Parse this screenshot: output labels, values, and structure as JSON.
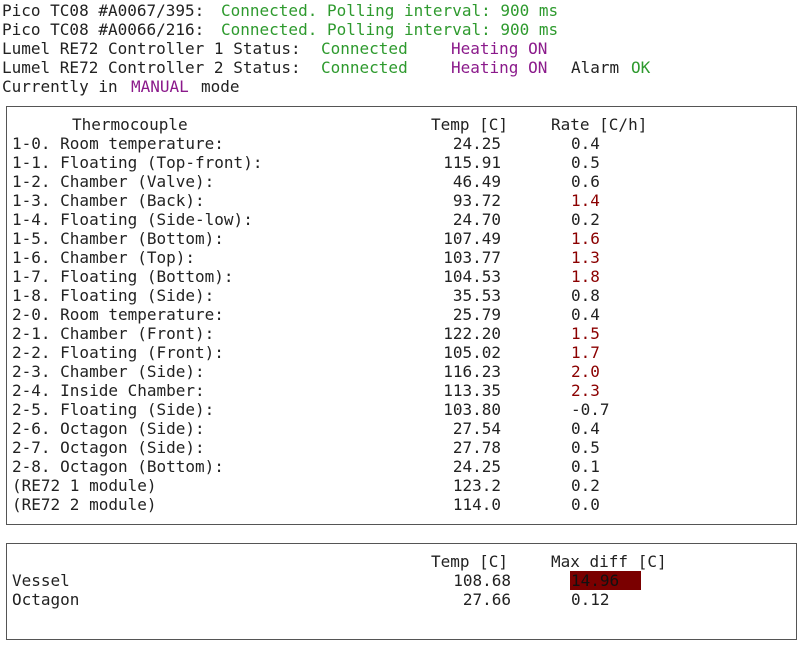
{
  "header": {
    "pico": [
      {
        "label": "Pico TC08 #A0067/395:",
        "status": "Connected. Polling interval: 900 ms"
      },
      {
        "label": "Pico TC08 #A0066/216:",
        "status": "Connected. Polling interval: 900 ms"
      }
    ],
    "lumel": [
      {
        "label": "Lumel RE72 Controller 1 Status:",
        "status": "Connected",
        "heating": "Heating ON"
      },
      {
        "label": "Lumel RE72 Controller 2 Status:",
        "status": "Connected",
        "heating": "Heating ON",
        "alarm_label": "Alarm",
        "alarm_value": "OK"
      }
    ],
    "mode": {
      "prefix": "Currently in",
      "value": "MANUAL",
      "suffix": "mode"
    }
  },
  "thermocouples": {
    "columns": [
      "Thermocouple",
      "Temp [C]",
      "Rate [C/h]"
    ],
    "rows": [
      {
        "name": "1-0. Room temperature:",
        "temp": "24.25",
        "rate": "0.4"
      },
      {
        "name": "1-1. Floating (Top-front):",
        "temp": "115.91",
        "rate": "0.5"
      },
      {
        "name": "1-2. Chamber (Valve):",
        "temp": "46.49",
        "rate": "0.6"
      },
      {
        "name": "1-3. Chamber (Back):",
        "temp": "93.72",
        "rate": "1.4",
        "rate_color": "#8b0000"
      },
      {
        "name": "1-4. Floating (Side-low):",
        "temp": "24.70",
        "rate": "0.2"
      },
      {
        "name": "1-5. Chamber (Bottom):",
        "temp": "107.49",
        "rate": "1.6",
        "rate_color": "#8b0000"
      },
      {
        "name": "1-6. Chamber (Top):",
        "temp": "103.77",
        "rate": "1.3",
        "rate_color": "#8b0000"
      },
      {
        "name": "1-7. Floating (Bottom):",
        "temp": "104.53",
        "rate": "1.8",
        "rate_color": "#8b0000"
      },
      {
        "name": "1-8. Floating (Side):",
        "temp": "35.53",
        "rate": "0.8"
      },
      {
        "name": "2-0. Room temperature:",
        "temp": "25.79",
        "rate": "0.4"
      },
      {
        "name": "2-1. Chamber (Front):",
        "temp": "122.20",
        "rate": "1.5",
        "rate_color": "#8b0000"
      },
      {
        "name": "2-2. Floating (Front):",
        "temp": "105.02",
        "rate": "1.7",
        "rate_color": "#8b0000"
      },
      {
        "name": "2-3. Chamber (Side):",
        "temp": "116.23",
        "rate": "2.0",
        "rate_color": "#8b0000"
      },
      {
        "name": "2-4. Inside Chamber:",
        "temp": "113.35",
        "rate": "2.3",
        "rate_color": "#8b0000"
      },
      {
        "name": "2-5. Floating (Side):",
        "temp": "103.80",
        "rate": "-0.7"
      },
      {
        "name": "2-6. Octagon (Side):",
        "temp": "27.54",
        "rate": "0.4"
      },
      {
        "name": "2-7. Octagon (Side):",
        "temp": "27.78",
        "rate": "0.5"
      },
      {
        "name": "2-8. Octagon (Bottom):",
        "temp": "24.25",
        "rate": "0.1"
      },
      {
        "name": "(RE72 1 module)",
        "temp": "123.2",
        "rate": "0.2"
      },
      {
        "name": "(RE72 2 module)",
        "temp": "114.0",
        "rate": "0.0"
      }
    ]
  },
  "summary": {
    "columns": [
      "Temp [C]",
      "Max diff [C]"
    ],
    "rows": [
      {
        "name": "Vessel",
        "temp": "108.68",
        "max_diff": "14.96",
        "max_diff_background": "#7a0000"
      },
      {
        "name": "Octagon",
        "temp": "27.66",
        "max_diff": "0.12"
      }
    ]
  }
}
